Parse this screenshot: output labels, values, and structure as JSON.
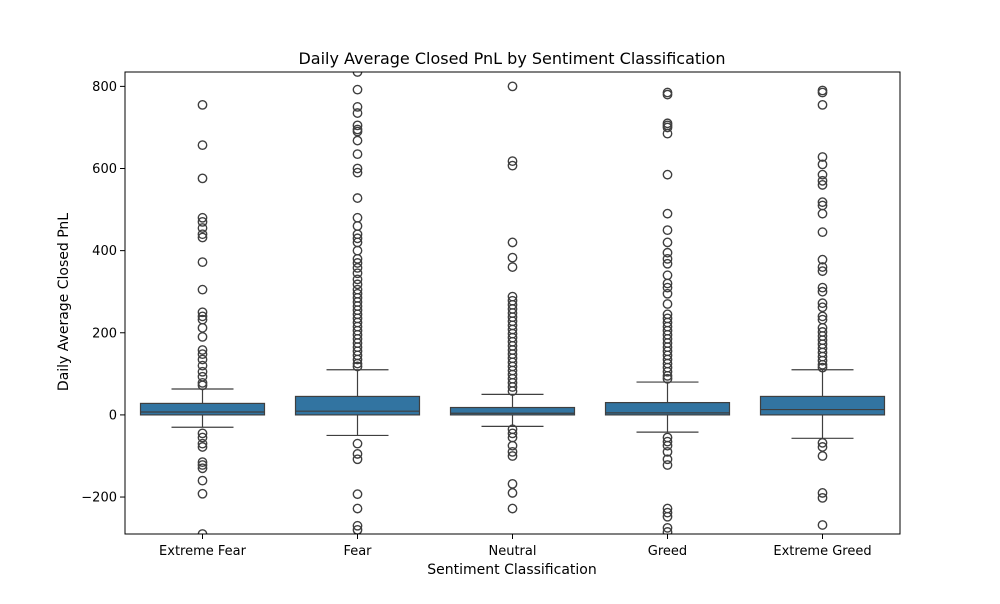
{
  "chart_data": {
    "type": "box",
    "title": "Daily Average Closed PnL by Sentiment Classification",
    "xlabel": "Sentiment Classification",
    "ylabel": "Daily Average Closed PnL",
    "categories": [
      "Extreme Fear",
      "Fear",
      "Neutral",
      "Greed",
      "Extreme Greed"
    ],
    "ylim": [
      -290,
      835
    ],
    "yticks": [
      -200,
      0,
      200,
      400,
      600,
      800
    ],
    "grid": false,
    "box_color": "#3274a1",
    "edge_color": "#3f3f3f",
    "boxes": [
      {
        "category": "Extreme Fear",
        "whisker_low": -30,
        "q1": 0,
        "median": 7,
        "q3": 28,
        "whisker_high": 63,
        "outliers": [
          755,
          657,
          576,
          480,
          470,
          455,
          440,
          432,
          372,
          305,
          250,
          240,
          232,
          212,
          190,
          158,
          148,
          135,
          120,
          105,
          93,
          78,
          72,
          -45,
          -55,
          -70,
          -78,
          -115,
          -122,
          -130,
          -160,
          -192,
          -290
        ]
      },
      {
        "category": "Fear",
        "whisker_low": -50,
        "q1": 0,
        "median": 9,
        "q3": 45,
        "whisker_high": 110,
        "outliers": [
          835,
          792,
          750,
          735,
          705,
          695,
          690,
          668,
          635,
          600,
          590,
          528,
          480,
          460,
          440,
          430,
          420,
          400,
          380,
          370,
          358,
          345,
          330,
          318,
          305,
          295,
          285,
          275,
          265,
          255,
          245,
          235,
          225,
          215,
          205,
          195,
          185,
          175,
          165,
          155,
          145,
          135,
          125,
          118,
          -70,
          -95,
          -108,
          -193,
          -228,
          -270,
          -280
        ]
      },
      {
        "category": "Neutral",
        "whisker_low": -28,
        "q1": 0,
        "median": 4,
        "q3": 18,
        "whisker_high": 50,
        "outliers": [
          800,
          618,
          607,
          420,
          383,
          360,
          288,
          278,
          268,
          258,
          248,
          238,
          228,
          218,
          208,
          198,
          188,
          178,
          168,
          158,
          148,
          138,
          128,
          118,
          108,
          98,
          88,
          78,
          68,
          58,
          -35,
          -45,
          -55,
          -75,
          -90,
          -100,
          -168,
          -190,
          -228
        ]
      },
      {
        "category": "Greed",
        "whisker_low": -42,
        "q1": 0,
        "median": 5,
        "q3": 30,
        "whisker_high": 80,
        "outliers": [
          785,
          780,
          710,
          705,
          700,
          685,
          585,
          490,
          450,
          420,
          395,
          380,
          368,
          340,
          320,
          310,
          295,
          270,
          245,
          235,
          225,
          215,
          205,
          195,
          185,
          175,
          165,
          155,
          145,
          135,
          125,
          115,
          105,
          95,
          88,
          -55,
          -65,
          -75,
          -90,
          -108,
          -122,
          -228,
          -238,
          -248,
          -275,
          -285
        ]
      },
      {
        "category": "Extreme Greed",
        "whisker_low": -57,
        "q1": 0,
        "median": 13,
        "q3": 45,
        "whisker_high": 110,
        "outliers": [
          790,
          785,
          755,
          628,
          610,
          585,
          570,
          560,
          518,
          510,
          490,
          445,
          378,
          360,
          350,
          310,
          300,
          272,
          262,
          240,
          232,
          212,
          202,
          192,
          182,
          172,
          162,
          152,
          142,
          132,
          122,
          115,
          -68,
          -78,
          -100,
          -190,
          -202,
          -268
        ]
      }
    ]
  }
}
